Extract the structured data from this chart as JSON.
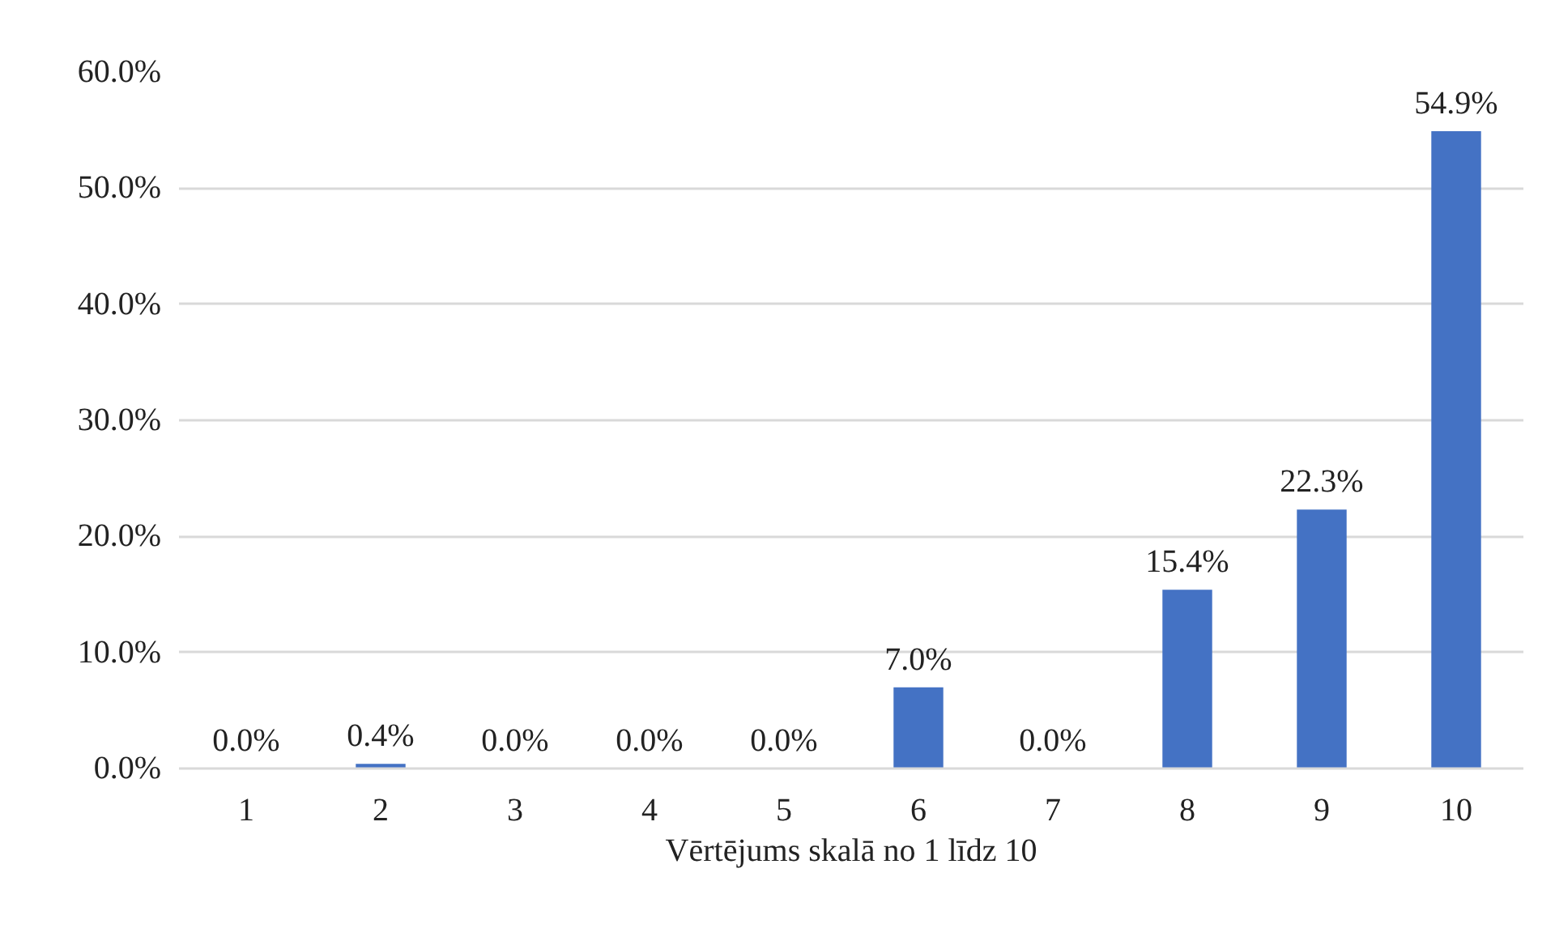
{
  "chart_data": {
    "type": "bar",
    "xlabel": "Vērtējums skalā no 1 līdz 10",
    "categories": [
      "1",
      "2",
      "3",
      "4",
      "5",
      "6",
      "7",
      "8",
      "9",
      "10"
    ],
    "values": [
      0.0,
      0.4,
      0.0,
      0.0,
      0.0,
      7.0,
      0.0,
      15.4,
      22.3,
      54.9
    ],
    "value_labels": [
      "0.0%",
      "0.4%",
      "0.0%",
      "0.0%",
      "0.0%",
      "7.0%",
      "0.0%",
      "15.4%",
      "22.3%",
      "54.9%"
    ],
    "color": "#4472c4",
    "ylim": [
      0,
      60
    ],
    "yticks": [
      {
        "value": 0,
        "label": "0.0%"
      },
      {
        "value": 10,
        "label": "10.0%"
      },
      {
        "value": 20,
        "label": "20.0%"
      },
      {
        "value": 30,
        "label": "30.0%"
      },
      {
        "value": 40,
        "label": "40.0%"
      },
      {
        "value": 50,
        "label": "50.0%"
      },
      {
        "value": 60,
        "label": "60.0%"
      }
    ],
    "grid": "y"
  }
}
